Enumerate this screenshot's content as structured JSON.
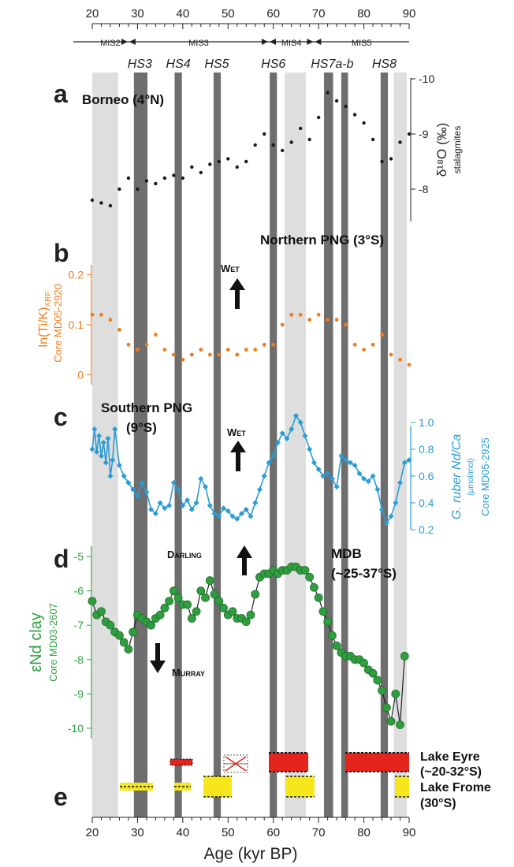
{
  "figure": {
    "x_axis": {
      "label": "Age (kyr BP)",
      "min": 20,
      "max": 90,
      "ticks": [
        20,
        30,
        40,
        50,
        60,
        70,
        80,
        90
      ]
    },
    "mis": [
      {
        "label": "MIS2",
        "from": 20,
        "to": 28,
        "arrow": "right"
      },
      {
        "label": "MIS3",
        "from": 28,
        "to": 59,
        "arrow": "both"
      },
      {
        "label": "MIS4",
        "from": 59,
        "to": 69,
        "arrow": "both"
      },
      {
        "label": "MIS5",
        "from": 69,
        "to": 90,
        "arrow": "left"
      }
    ],
    "heinrich_stadials": [
      {
        "label": "HS3",
        "age": 30.5
      },
      {
        "label": "HS4",
        "age": 39
      },
      {
        "label": "HS5",
        "age": 47.5
      },
      {
        "label": "HS6",
        "age": 60
      },
      {
        "label": "HS7a-b",
        "age": 73
      },
      {
        "label": "HS8",
        "age": 84.5
      }
    ],
    "dark_bands": [
      [
        29.2,
        32.2
      ],
      [
        38.2,
        39.8
      ],
      [
        46.8,
        48.4
      ],
      [
        59.2,
        60.8
      ],
      [
        71.2,
        73.2
      ],
      [
        75,
        76.5
      ],
      [
        83.7,
        85.3
      ]
    ],
    "light_bands": [
      [
        20,
        25.7
      ],
      [
        62.5,
        67.2
      ],
      [
        86.6,
        89.5
      ]
    ],
    "colors": {
      "black": "#1a1a1a",
      "orange": "#ef7d1e",
      "blue": "#2b9bd4",
      "green": "#2f9e3f",
      "dark_band": "#6e6e6e",
      "light_band": "#dedede",
      "red": "#e2241c",
      "yellow": "#f5e71c"
    }
  },
  "panel_a": {
    "letter": "a",
    "region": "Borneo (4°N)",
    "axis_title": "δ¹⁸O (‰)",
    "axis_sub": "stalagmites"
  },
  "panel_b": {
    "letter": "b",
    "region": "Northern PNG (3°S)",
    "axis_title": "ln(Ti/K)",
    "axis_title_sub": "XRF",
    "axis_sub": "Core MD05-2920",
    "wet": "Wet"
  },
  "panel_c": {
    "letter": "c",
    "region_1": "Southern PNG",
    "region_2": "(9°S)",
    "axis_title": "G. ruber Nd/Ca",
    "axis_unit": "(µmol/mol)",
    "axis_sub": "Core MD05-2925",
    "wet": "Wet"
  },
  "panel_d": {
    "letter": "d",
    "region_1": "MDB",
    "region_2": "(~25-37°S)",
    "axis_title": "εNd clay",
    "axis_sub": "Core MD03-2607",
    "darling": "Darling",
    "murray": "Murray"
  },
  "panel_e": {
    "letter": "e",
    "eyre_1": "Lake Eyre",
    "eyre_2": "(~20-32°S)",
    "frome_1": "Lake Frome",
    "frome_2": "(30°S)"
  },
  "chart_data": [
    {
      "type": "scatter",
      "title": "Borneo (4°N)",
      "ylabel": "δ18O (‰) stalagmites",
      "xlabel": "Age (kyr BP)",
      "xlim": [
        20,
        90
      ],
      "ylim": [
        -7.5,
        -10
      ],
      "ytick_labels": [
        "-10",
        "-9",
        "-8"
      ],
      "series": [
        {
          "x": [
            20,
            22,
            24,
            26,
            28,
            30,
            32,
            34,
            36,
            38,
            40,
            42,
            44,
            46,
            48,
            50,
            52,
            54,
            56,
            58,
            60,
            62,
            64,
            66,
            68,
            70,
            72,
            74,
            76,
            78,
            80,
            82,
            84,
            86,
            88,
            90
          ],
          "y": [
            -7.8,
            -7.75,
            -7.7,
            -8.0,
            -8.2,
            -8.0,
            -8.15,
            -8.1,
            -8.2,
            -8.25,
            -8.2,
            -8.4,
            -8.3,
            -8.45,
            -8.5,
            -8.55,
            -8.4,
            -8.5,
            -8.8,
            -9.0,
            -8.8,
            -8.7,
            -8.85,
            -9.1,
            -8.9,
            -9.3,
            -9.75,
            -9.6,
            -9.5,
            -9.35,
            -9.2,
            -8.9,
            -8.5,
            -8.55,
            -8.85,
            -9.0
          ]
        }
      ]
    },
    {
      "type": "scatter",
      "title": "Northern PNG (3°S)",
      "ylabel": "ln(Ti/K)XRF Core MD05-2920",
      "xlabel": "Age (kyr BP)",
      "xlim": [
        20,
        90
      ],
      "ylim": [
        -0.02,
        0.22
      ],
      "ytick_labels": [
        "0",
        "0.1",
        "0.2"
      ],
      "series": [
        {
          "x": [
            20,
            22,
            24,
            26,
            28,
            30,
            32,
            34,
            36,
            38,
            40,
            42,
            44,
            46,
            48,
            50,
            52,
            54,
            56,
            58,
            60,
            62,
            64,
            66,
            68,
            70,
            72,
            74,
            76,
            78,
            80,
            82,
            84,
            86,
            88,
            90
          ],
          "y": [
            0.12,
            0.12,
            0.11,
            0.09,
            0.06,
            0.05,
            0.06,
            0.08,
            0.05,
            0.04,
            0.03,
            0.04,
            0.05,
            0.04,
            0.04,
            0.05,
            0.04,
            0.05,
            0.05,
            0.06,
            0.06,
            0.1,
            0.12,
            0.12,
            0.11,
            0.12,
            0.11,
            0.11,
            0.1,
            0.06,
            0.05,
            0.06,
            0.08,
            0.04,
            0.03,
            0.02
          ]
        }
      ]
    },
    {
      "type": "line",
      "title": "Southern PNG (9°S)",
      "ylabel": "G. ruber Nd/Ca (µmol/mol) Core MD05-2925",
      "xlabel": "Age (kyr BP)",
      "xlim": [
        20,
        90
      ],
      "ylim": [
        0.2,
        1.1
      ],
      "ytick_labels": [
        "0.2",
        "0.4",
        "0.6",
        "0.8",
        "1.0"
      ],
      "series": [
        {
          "x": [
            20,
            20.5,
            21,
            21.5,
            22,
            22.5,
            23,
            23.5,
            24,
            24.5,
            25,
            26,
            27,
            28,
            29,
            30,
            31,
            32,
            33,
            34,
            35,
            36,
            37,
            38,
            39,
            40,
            41,
            42,
            43,
            44,
            45,
            46,
            47,
            48,
            49,
            50,
            51,
            52,
            53,
            54,
            55,
            56,
            57,
            58,
            59,
            60,
            61,
            62,
            63,
            64,
            65,
            66,
            67,
            68,
            69,
            70,
            71,
            72,
            73,
            74,
            75,
            76,
            77,
            78,
            79,
            80,
            81,
            82,
            83,
            84,
            85,
            86,
            87,
            88,
            89,
            90
          ],
          "y": [
            0.8,
            0.95,
            0.78,
            0.9,
            0.75,
            0.85,
            0.7,
            0.88,
            0.6,
            0.72,
            0.95,
            0.68,
            0.6,
            0.55,
            0.5,
            0.45,
            0.55,
            0.48,
            0.35,
            0.32,
            0.4,
            0.36,
            0.38,
            0.55,
            0.5,
            0.38,
            0.42,
            0.35,
            0.4,
            0.58,
            0.52,
            0.38,
            0.32,
            0.3,
            0.36,
            0.34,
            0.3,
            0.28,
            0.32,
            0.35,
            0.3,
            0.4,
            0.5,
            0.6,
            0.7,
            0.75,
            0.85,
            0.92,
            0.88,
            0.95,
            1.05,
            1.0,
            0.9,
            0.8,
            0.7,
            0.65,
            0.6,
            0.62,
            0.58,
            0.52,
            0.75,
            0.72,
            0.7,
            0.68,
            0.62,
            0.58,
            0.56,
            0.6,
            0.5,
            0.35,
            0.25,
            0.3,
            0.4,
            0.55,
            0.7,
            0.72
          ]
        }
      ]
    },
    {
      "type": "line",
      "title": "MDB (~25-37°S)",
      "ylabel": "εNd clay Core MD03-2607",
      "xlabel": "Age (kyr BP)",
      "xlim": [
        20,
        90
      ],
      "ylim": [
        -10.3,
        -4.7
      ],
      "ytick_labels": [
        "-5",
        "-6",
        "-7",
        "-8",
        "-9",
        "-10"
      ],
      "series": [
        {
          "x": [
            20,
            21,
            22,
            23,
            24,
            25,
            26,
            27,
            28,
            29,
            30,
            31,
            32,
            33,
            34,
            35,
            36,
            37,
            38,
            39,
            40,
            41,
            42,
            43,
            44,
            45,
            46,
            47,
            48,
            49,
            50,
            51,
            52,
            53,
            54,
            55,
            56,
            57,
            58,
            59,
            60,
            61,
            62,
            63,
            64,
            65,
            66,
            67,
            68,
            69,
            70,
            71,
            72,
            73,
            74,
            75,
            76,
            77,
            78,
            79,
            80,
            81,
            82,
            83,
            84,
            85,
            86,
            87,
            88,
            89
          ],
          "y": [
            -6.3,
            -6.7,
            -6.6,
            -6.9,
            -7.0,
            -7.2,
            -7.3,
            -7.5,
            -7.7,
            -7.2,
            -6.7,
            -6.8,
            -6.9,
            -7.0,
            -6.8,
            -6.7,
            -6.5,
            -6.3,
            -6.0,
            -6.2,
            -6.4,
            -6.4,
            -6.8,
            -6.6,
            -6.0,
            -6.2,
            -5.7,
            -6.1,
            -6.3,
            -6.5,
            -6.7,
            -6.6,
            -6.8,
            -6.8,
            -6.9,
            -6.7,
            -6.1,
            -5.6,
            -5.5,
            -5.5,
            -5.4,
            -5.5,
            -5.4,
            -5.4,
            -5.3,
            -5.3,
            -5.4,
            -5.4,
            -5.6,
            -5.9,
            -6.2,
            -6.6,
            -6.9,
            -7.3,
            -7.6,
            -7.8,
            -7.9,
            -7.9,
            -8.0,
            -8.0,
            -8.1,
            -8.3,
            -8.4,
            -8.6,
            -8.9,
            -9.4,
            -9.8,
            -9.0,
            -9.9,
            -7.9
          ]
        }
      ]
    }
  ]
}
